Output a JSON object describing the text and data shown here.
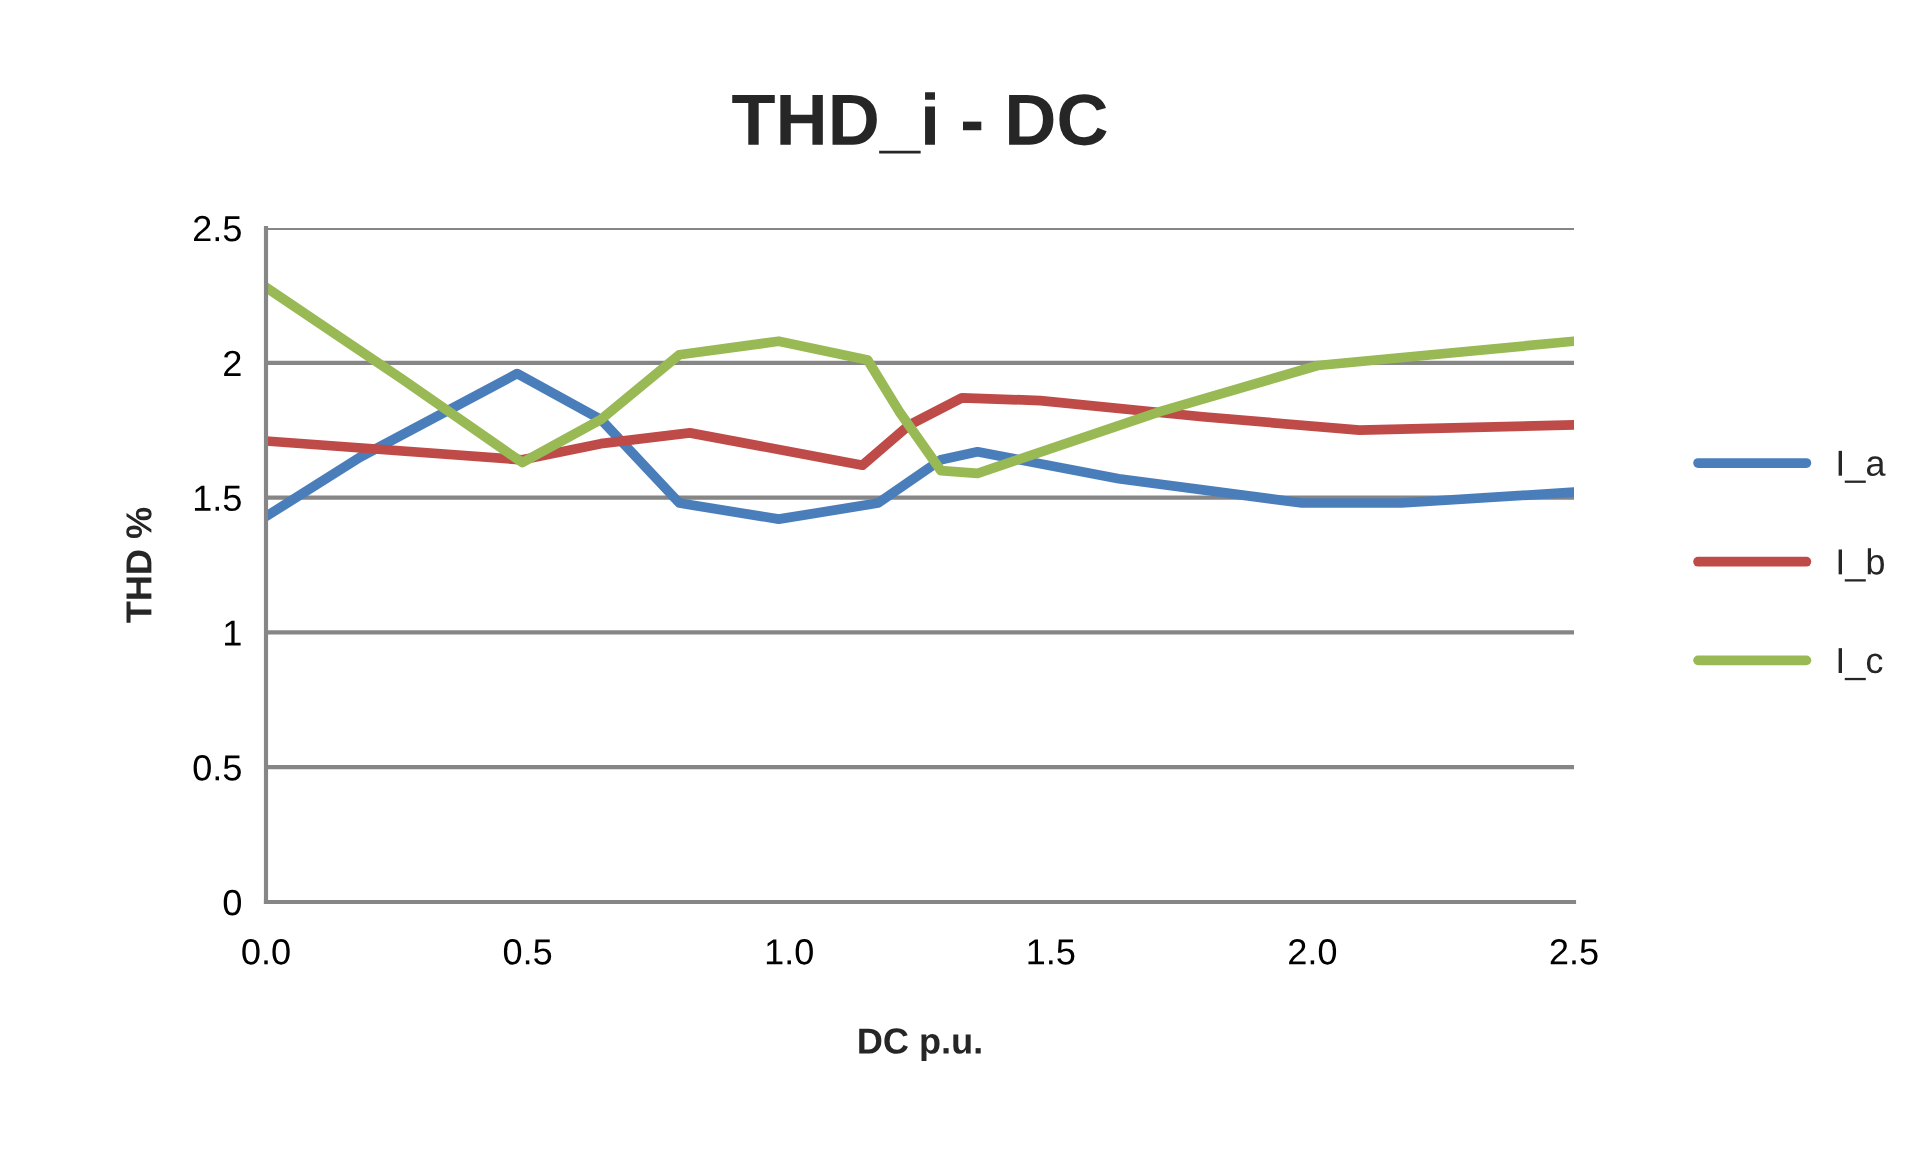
{
  "chart_data": {
    "type": "line",
    "title": "THD_i - DC",
    "xlabel": "DC p.u.",
    "ylabel": "THD %",
    "xlim": [
      0,
      2.5
    ],
    "xticks": [
      {
        "value": 0,
        "label": "0.0"
      },
      0.5,
      {
        "value": 1,
        "label": "1.0"
      },
      1.5,
      {
        "value": 2,
        "label": "2.0"
      },
      2.5
    ],
    "ylim": [
      0,
      2.5
    ],
    "yticks": [
      0,
      0.5,
      1,
      1.5,
      2,
      2.5
    ],
    "grid": "y",
    "legend": "right",
    "marker": "none",
    "line_style": "solid",
    "series": [
      {
        "name": "I_a",
        "color": "#4a7ebb",
        "x": [
          0,
          0.18,
          0.48,
          0.64,
          0.79,
          0.98,
          1.17,
          1.29,
          1.36,
          1.63,
          1.98,
          2.17,
          2.5
        ],
        "values": [
          1.43,
          1.65,
          1.96,
          1.79,
          1.48,
          1.42,
          1.48,
          1.64,
          1.67,
          1.57,
          1.48,
          1.48,
          1.52
        ]
      },
      {
        "name": "I_b",
        "color": "#be4b48",
        "x": [
          0,
          0.49,
          0.64,
          0.81,
          1.14,
          1.23,
          1.33,
          1.48,
          1.79,
          2.09,
          2.5
        ],
        "values": [
          1.71,
          1.64,
          1.7,
          1.74,
          1.62,
          1.77,
          1.87,
          1.86,
          1.8,
          1.75,
          1.77
        ]
      },
      {
        "name": "I_c",
        "color": "#98b954",
        "x": [
          0,
          0.26,
          0.49,
          0.64,
          0.79,
          0.98,
          1.15,
          1.21,
          1.29,
          1.36,
          1.71,
          2.01,
          2.5
        ],
        "values": [
          2.28,
          1.94,
          1.63,
          1.79,
          2.03,
          2.08,
          2.01,
          1.82,
          1.6,
          1.59,
          1.82,
          1.99,
          2.08
        ]
      }
    ]
  }
}
